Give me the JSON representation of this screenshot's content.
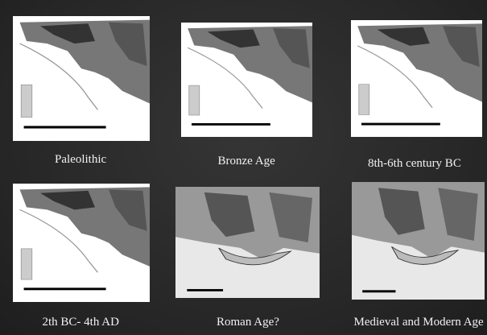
{
  "panels": [
    {
      "caption": "Paleolithic"
    },
    {
      "caption": "Bronze Age"
    },
    {
      "caption": "8th-6th century BC"
    },
    {
      "caption": "2th BC- 4th AD"
    },
    {
      "caption": "Roman Age?"
    },
    {
      "caption": "Medieval and Modern Age"
    }
  ]
}
